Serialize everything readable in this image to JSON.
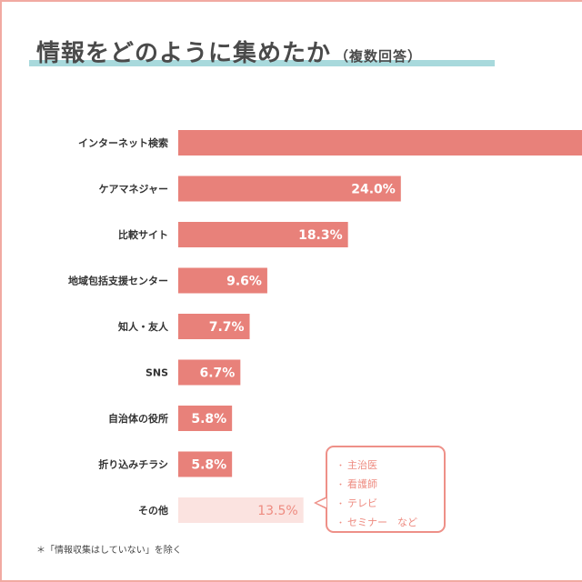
{
  "chart_data": {
    "type": "bar",
    "orientation": "horizontal",
    "title": "情報をどのように集めたか",
    "subtitle": "（複数回答）",
    "categories": [
      "インターネット検索",
      "ケアマネジャー",
      "比較サイト",
      "地域包括支援センター",
      "知人・友人",
      "SNS",
      "自治体の役所",
      "折り込みチラシ",
      "その他"
    ],
    "values": [
      null,
      24.0,
      18.3,
      9.6,
      7.7,
      6.7,
      5.8,
      5.8,
      13.5
    ],
    "value_labels": [
      "",
      "24.0%",
      "18.3%",
      "9.6%",
      "7.7%",
      "6.7%",
      "5.8%",
      "5.8%",
      "13.5%"
    ],
    "bar_color": "#e8817a",
    "other_bar_color": "#fbe3e0",
    "other_label_color": "#ee8b80",
    "value_label_color": "#ffffff",
    "category_label_color": "#333333"
  },
  "callout": {
    "items": [
      "主治医",
      "看護師",
      "テレビ",
      "セミナー　など"
    ],
    "bullet": "・",
    "border_color": "#ee9088"
  },
  "footnote": "＊「情報収集はしていない」を除く",
  "colors": {
    "frame": "#f1aaa2",
    "title_underline": "#a8d9dc"
  }
}
